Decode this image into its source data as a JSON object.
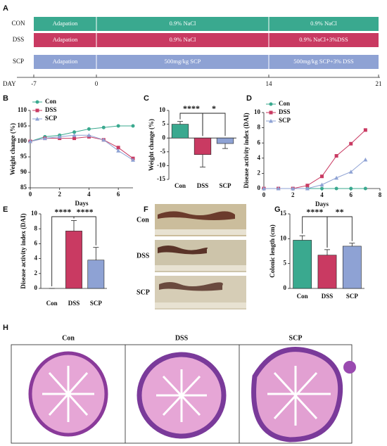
{
  "panel_labels": [
    "A",
    "B",
    "C",
    "D",
    "E",
    "F",
    "G",
    "H"
  ],
  "timeline": {
    "groups": [
      {
        "name": "CON",
        "color": "#3aa98f",
        "segments": [
          "Adapation",
          "0.9% NaCl",
          "0.9% NaCl"
        ]
      },
      {
        "name": "DSS",
        "color": "#c93a62",
        "segments": [
          "Adapation",
          "0.9% NaCl",
          "0.9% NaCl+3%DSS"
        ]
      },
      {
        "name": "SCP",
        "color": "#8ea2d4",
        "segments": [
          "Adapation",
          "500mg/kg SCP",
          "500mg/kg SCP+3% DSS"
        ]
      }
    ],
    "axis_label": "DAY",
    "days": [
      "-7",
      "0",
      "14",
      "21"
    ]
  },
  "chart_data": [
    {
      "type": "line",
      "ylabel": "Weight change (%)",
      "xlabel": "Days",
      "x": [
        0,
        1,
        2,
        3,
        4,
        5,
        6,
        7
      ],
      "series": [
        {
          "name": "Con",
          "color": "#3aa98f",
          "marker": "circle",
          "values": [
            100,
            101.5,
            102,
            103,
            104,
            104.5,
            105,
            105
          ]
        },
        {
          "name": "DSS",
          "color": "#c93a62",
          "marker": "square",
          "values": [
            100,
            101,
            101,
            101,
            101.5,
            100.5,
            98,
            94.5
          ]
        },
        {
          "name": "SCP",
          "color": "#8ea2d4",
          "marker": "triangle",
          "values": [
            100,
            101,
            101.5,
            102,
            102,
            100.5,
            97,
            94
          ]
        }
      ],
      "xlim": [
        0,
        7
      ],
      "xticks": [
        0,
        2,
        4,
        6
      ],
      "ylim": [
        85,
        110
      ],
      "yticks": [
        85,
        90,
        95,
        100,
        105,
        110
      ],
      "legend": "upper left"
    },
    {
      "type": "bar",
      "ylabel": "Weight change (%)",
      "categories": [
        "Con",
        "DSS",
        "SCP"
      ],
      "values": [
        5,
        -6,
        -2
      ],
      "errors": [
        1,
        4.5,
        1.8
      ],
      "colors": [
        "#3aa98f",
        "#c93a62",
        "#8ea2d4"
      ],
      "ylim": [
        -15,
        10
      ],
      "yticks": [
        -15,
        -10,
        -5,
        0,
        5,
        10
      ],
      "significance": [
        {
          "label": "****",
          "from": 0,
          "to": 1
        },
        {
          "label": "*",
          "from": 1,
          "to": 2
        }
      ]
    },
    {
      "type": "line",
      "ylabel": "Disease activity index (DAI)",
      "xlabel": "Days",
      "x": [
        0,
        1,
        2,
        3,
        4,
        5,
        6,
        7
      ],
      "series": [
        {
          "name": "Con",
          "color": "#3aa98f",
          "marker": "circle",
          "values": [
            0,
            0,
            0,
            0,
            0,
            0,
            0,
            0
          ]
        },
        {
          "name": "DSS",
          "color": "#c93a62",
          "marker": "square",
          "values": [
            0,
            0,
            0,
            0.4,
            1.6,
            4.3,
            5.9,
            7.7
          ]
        },
        {
          "name": "SCP",
          "color": "#8ea2d4",
          "marker": "triangle",
          "values": [
            0,
            0,
            0,
            0,
            0.5,
            1.4,
            2.2,
            3.8
          ]
        }
      ],
      "xlim": [
        0,
        8
      ],
      "xticks": [
        0,
        2,
        4,
        6,
        8
      ],
      "ylim": [
        0,
        10
      ],
      "yticks": [
        0,
        2,
        4,
        6,
        8,
        10
      ],
      "legend": "upper left"
    },
    {
      "type": "bar",
      "ylabel": "Disease activity index (DAI)",
      "categories": [
        "Con",
        "DSS",
        "SCP"
      ],
      "values": [
        0,
        7.7,
        3.8
      ],
      "errors": [
        0,
        1.4,
        1.7
      ],
      "colors": [
        "#3aa98f",
        "#c93a62",
        "#8ea2d4"
      ],
      "ylim": [
        0,
        10
      ],
      "yticks": [
        0,
        2,
        4,
        6,
        8,
        10
      ],
      "significance": [
        {
          "label": "****",
          "from": 0,
          "to": 1
        },
        {
          "label": "****",
          "from": 1,
          "to": 2
        }
      ]
    },
    {
      "type": "bar",
      "ylabel": "Colonic length (cm)",
      "categories": [
        "Con",
        "DSS",
        "SCP"
      ],
      "values": [
        9.7,
        6.7,
        8.5
      ],
      "errors": [
        0.9,
        1.1,
        0.6
      ],
      "colors": [
        "#3aa98f",
        "#c93a62",
        "#8ea2d4"
      ],
      "ylim": [
        0,
        15
      ],
      "yticks": [
        0,
        5,
        10,
        15
      ],
      "significance": [
        {
          "label": "****",
          "from": 0,
          "to": 1
        },
        {
          "label": "**",
          "from": 1,
          "to": 2
        }
      ]
    }
  ],
  "photo": {
    "labels": [
      "Con",
      "DSS",
      "SCP"
    ]
  },
  "histology": {
    "labels": [
      "Con",
      "DSS",
      "SCP"
    ]
  }
}
